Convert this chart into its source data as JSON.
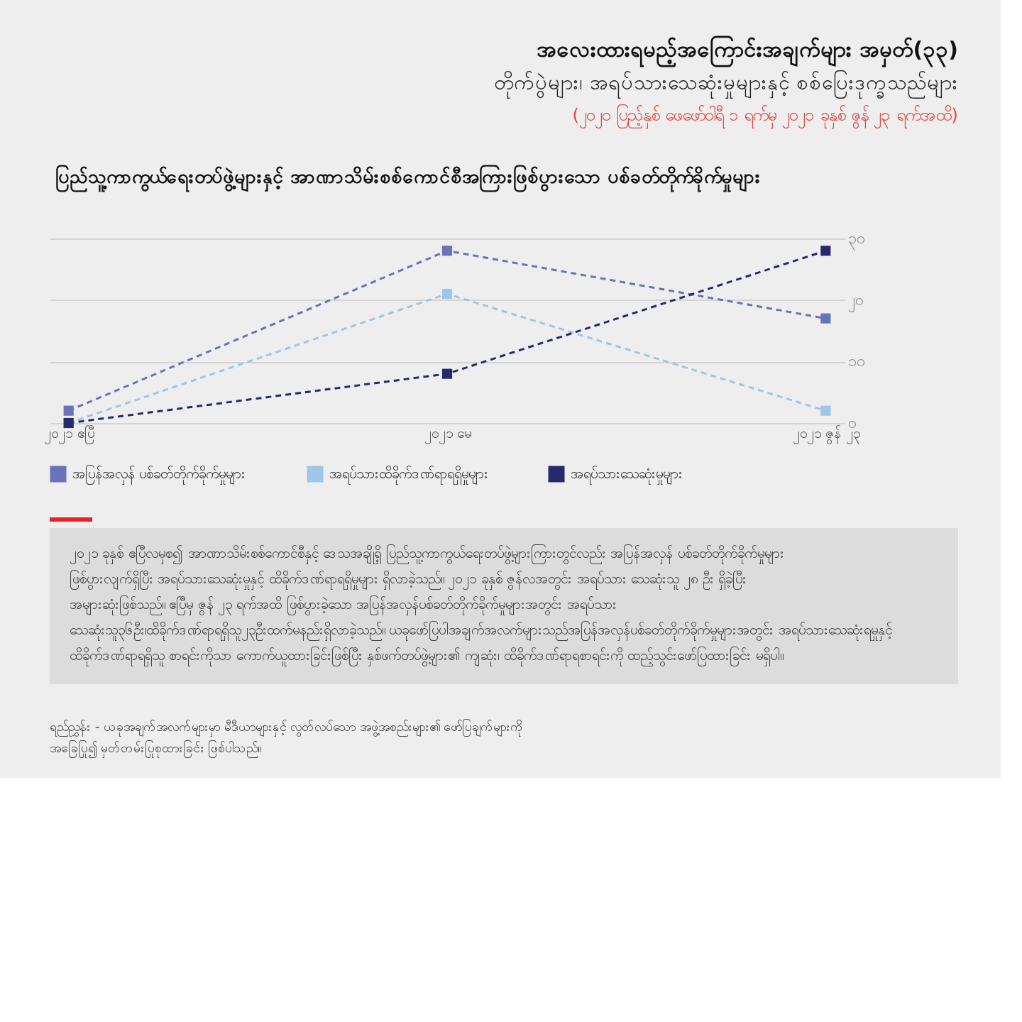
{
  "chart_data": {
    "type": "line",
    "title": "အလေးထားရမည့်အကြောင်းအချက်များ အမှတ်(၃၃)",
    "subtitle": "တိုက်ပွဲများ၊ အရပ်သားသေဆုံးမှုများနှင့် စစ်ပြေးဒုက္ခသည်များ",
    "annotations": [
      "(၂၀၂၀ ပြည့်နှစ် ဖေဖော်ဝါရီ ၁ ရက်မှ ၂၀၂၁ ခုနှစ် ဇွန် ၂၃ ရက်အထိ)",
      "ပြည်သူ့ကာကွယ်ရေးတပ်ဖွဲ့များနှင့် အာဏာသိမ်းစစ်ကောင်စီအကြားဖြစ်ပွားသော ပစ်ခတ်တိုက်ခိုက်မှုများ",
      "၂၀၂၁ ခုနှစ် ဧပြီလမှစ၍ အာဏာသိမ်းစစ်ကောင်စီနှင့် ဒေသအချို့ရှိ ပြည်သူ့ကာကွယ်ရေးတပ်ဖွဲ့များကြားတွင်လည်း အပြန်အလှန် ပစ်ခတ်တိုက်ခိုက်မှုများ ဖြစ်ပွားလျက်ရှိပြီး အရပ်သားသေဆုံးမှုနှင့် ထိခိုက်ဒဏ်ရာရရှိမှုများ ရှိလာခဲ့သည်။ ၂၀၂၁ ခုနှစ် ဇွန်လအတွင်း အရပ်သား သေဆုံးသူ ၂၈ ဦး ရှိခဲ့ပြီး အများဆုံးဖြစ်သည်။ ဧပြီမှ ဇွန် ၂၃ ရက်အထိ ဖြစ်ပွားခဲ့သော အပြန်အလှန်ပစ်ခတ်တိုက်ခိုက်မှုများအတွင်း အရပ်သား သေဆုံးသူ၃၆ဦး၊ထိခိုက်ဒဏ်ရာရရှိသူ၂၃ဦးထက်မနည်းရှိလာခဲ့သည်။ ယခုဖော်ပြပါအချက်အလက်များသည်အပြန်အလှန်ပစ်ခတ်တိုက်ခိုက်မှုများအတွင်း အရပ်သားသေဆုံးရမှုနှင့် ထိခိုက်ဒဏ်ရာရရှိသူ စာရင်းကိုသာ ကောက်ယူထားခြင်းဖြစ်ပြီး နှစ်ဖက်တပ်ဖွဲ့များ၏ ကျဆုံး၊ ထိခိုက်ဒဏ်ရာရစာရင်းကို ထည့်သွင်းဖော်ပြထားခြင်း မရှိပါ။",
      "ရည်ညွှန်း - ယခုအချက်အလက်များမှာ မီဒီယာများနှင့် လွတ်လပ်သော အဖွဲ့အစည်းများ၏ ဖော်ပြချက်များကို အခြေပြု၍ မှတ်တမ်းပြုစုထားခြင်း ဖြစ်ပါသည်။"
    ],
    "categories": [
      "၂၀၂၁ ဧပြီ",
      "၂၀၂၁ မေ",
      "၂၀၂၁ ဇွန် ၂၃"
    ],
    "series": [
      {
        "name": "အပြန်အလှန် ပစ်ခတ်တိုက်ခိုက်မှုများ",
        "color": "#6a72b8",
        "values": [
          2,
          28,
          17
        ]
      },
      {
        "name": "အရပ်သားထိခိုက်ဒဏ်ရာရရှိမှုများ",
        "color": "#9fc5e8",
        "values": [
          0,
          21,
          2
        ]
      },
      {
        "name": "အရပ်သားသေဆုံးမှုများ",
        "color": "#262a6c",
        "values": [
          0,
          8,
          28
        ]
      }
    ],
    "ylim": [
      0,
      30
    ],
    "yticks": [
      {
        "value": 0,
        "label": "၀"
      },
      {
        "value": 10,
        "label": "၁၀"
      },
      {
        "value": 20,
        "label": "၂၀"
      },
      {
        "value": 30,
        "label": "၃၀"
      }
    ],
    "grid": "y",
    "legend": "bottom",
    "marker": "square",
    "line_style": "dashed"
  }
}
